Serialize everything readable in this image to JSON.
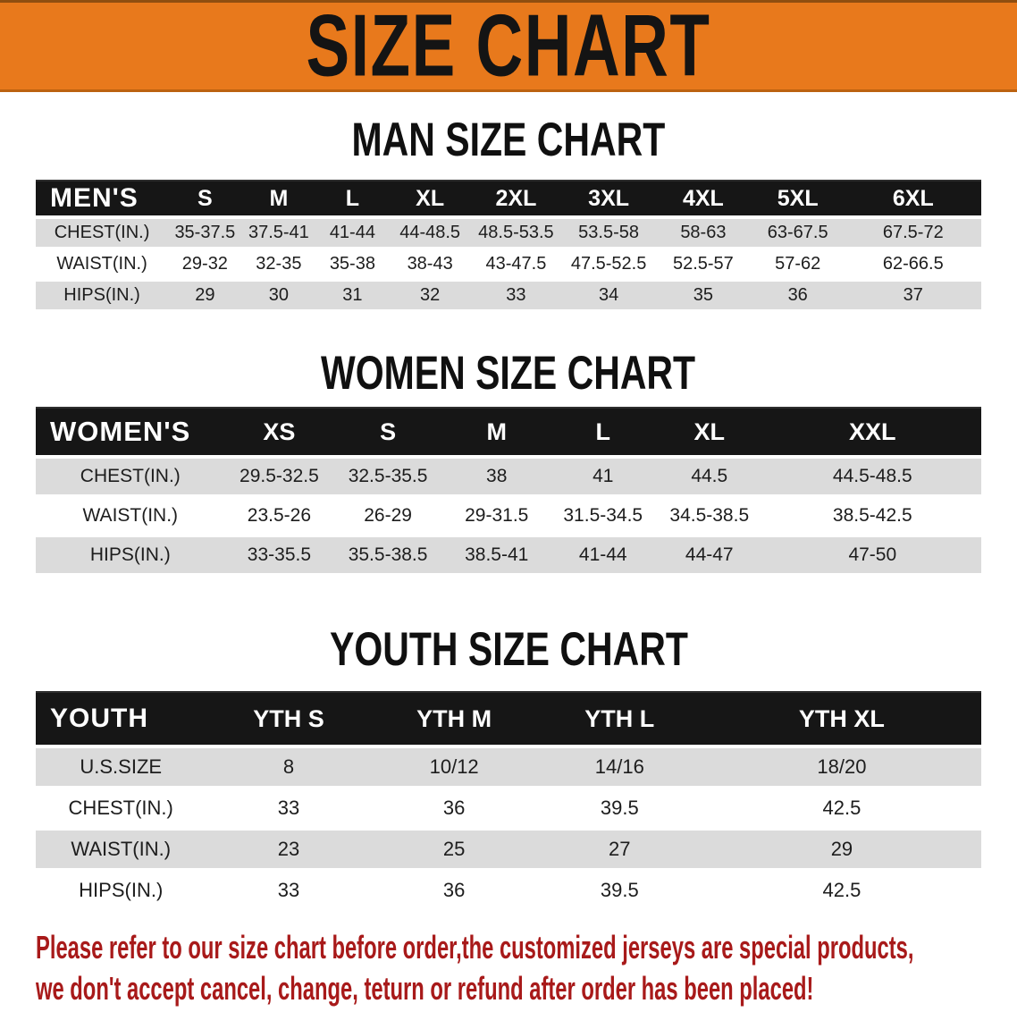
{
  "banner": {
    "title": "SIZE CHART"
  },
  "colors": {
    "banner_orange": "#E8791C",
    "table_header_black": "#161616",
    "row_stripe_gray": "#DBDBDB",
    "disclaimer_red": "#A81A1A"
  },
  "sections": {
    "men": {
      "heading": "MAN SIZE CHART",
      "table": {
        "name": "men",
        "label": "MEN'S",
        "columns": [
          "S",
          "M",
          "L",
          "XL",
          "2XL",
          "3XL",
          "4XL",
          "5XL",
          "6XL"
        ],
        "rows": [
          {
            "label": "CHEST(IN.)",
            "values": [
              "35-37.5",
              "37.5-41",
              "41-44",
              "44-48.5",
              "48.5-53.5",
              "53.5-58",
              "58-63",
              "63-67.5",
              "67.5-72"
            ]
          },
          {
            "label": "WAIST(IN.)",
            "values": [
              "29-32",
              "32-35",
              "35-38",
              "38-43",
              "43-47.5",
              "47.5-52.5",
              "52.5-57",
              "57-62",
              "62-66.5"
            ]
          },
          {
            "label": "HIPS(IN.)",
            "values": [
              "29",
              "30",
              "31",
              "32",
              "33",
              "34",
              "35",
              "36",
              "37"
            ]
          }
        ]
      }
    },
    "women": {
      "heading": "WOMEN SIZE CHART",
      "table": {
        "name": "women",
        "label": "WOMEN'S",
        "columns": [
          "XS",
          "S",
          "M",
          "L",
          "XL",
          "XXL"
        ],
        "rows": [
          {
            "label": "CHEST(IN.)",
            "values": [
              "29.5-32.5",
              "32.5-35.5",
              "38",
              "41",
              "44.5",
              "44.5-48.5"
            ]
          },
          {
            "label": "WAIST(IN.)",
            "values": [
              "23.5-26",
              "26-29",
              "29-31.5",
              "31.5-34.5",
              "34.5-38.5",
              "38.5-42.5"
            ]
          },
          {
            "label": "HIPS(IN.)",
            "values": [
              "33-35.5",
              "35.5-38.5",
              "38.5-41",
              "41-44",
              "44-47",
              "47-50"
            ]
          }
        ]
      }
    },
    "youth": {
      "heading": "YOUTH SIZE CHART",
      "table": {
        "name": "youth",
        "label": "YOUTH",
        "columns": [
          "YTH S",
          "YTH M",
          "YTH L",
          "YTH XL"
        ],
        "rows": [
          {
            "label": "U.S.SIZE",
            "values": [
              "8",
              "10/12",
              "14/16",
              "18/20"
            ]
          },
          {
            "label": "CHEST(IN.)",
            "values": [
              "33",
              "36",
              "39.5",
              "42.5"
            ]
          },
          {
            "label": "WAIST(IN.)",
            "values": [
              "23",
              "25",
              "27",
              "29"
            ]
          },
          {
            "label": "HIPS(IN.)",
            "values": [
              "33",
              "36",
              "39.5",
              "42.5"
            ]
          }
        ]
      }
    }
  },
  "disclaimer": {
    "line1": "Please refer to our size chart before order,the customized jerseys are special products,",
    "line2": "we don't accept cancel, change, teturn or refund after order has been placed!"
  }
}
